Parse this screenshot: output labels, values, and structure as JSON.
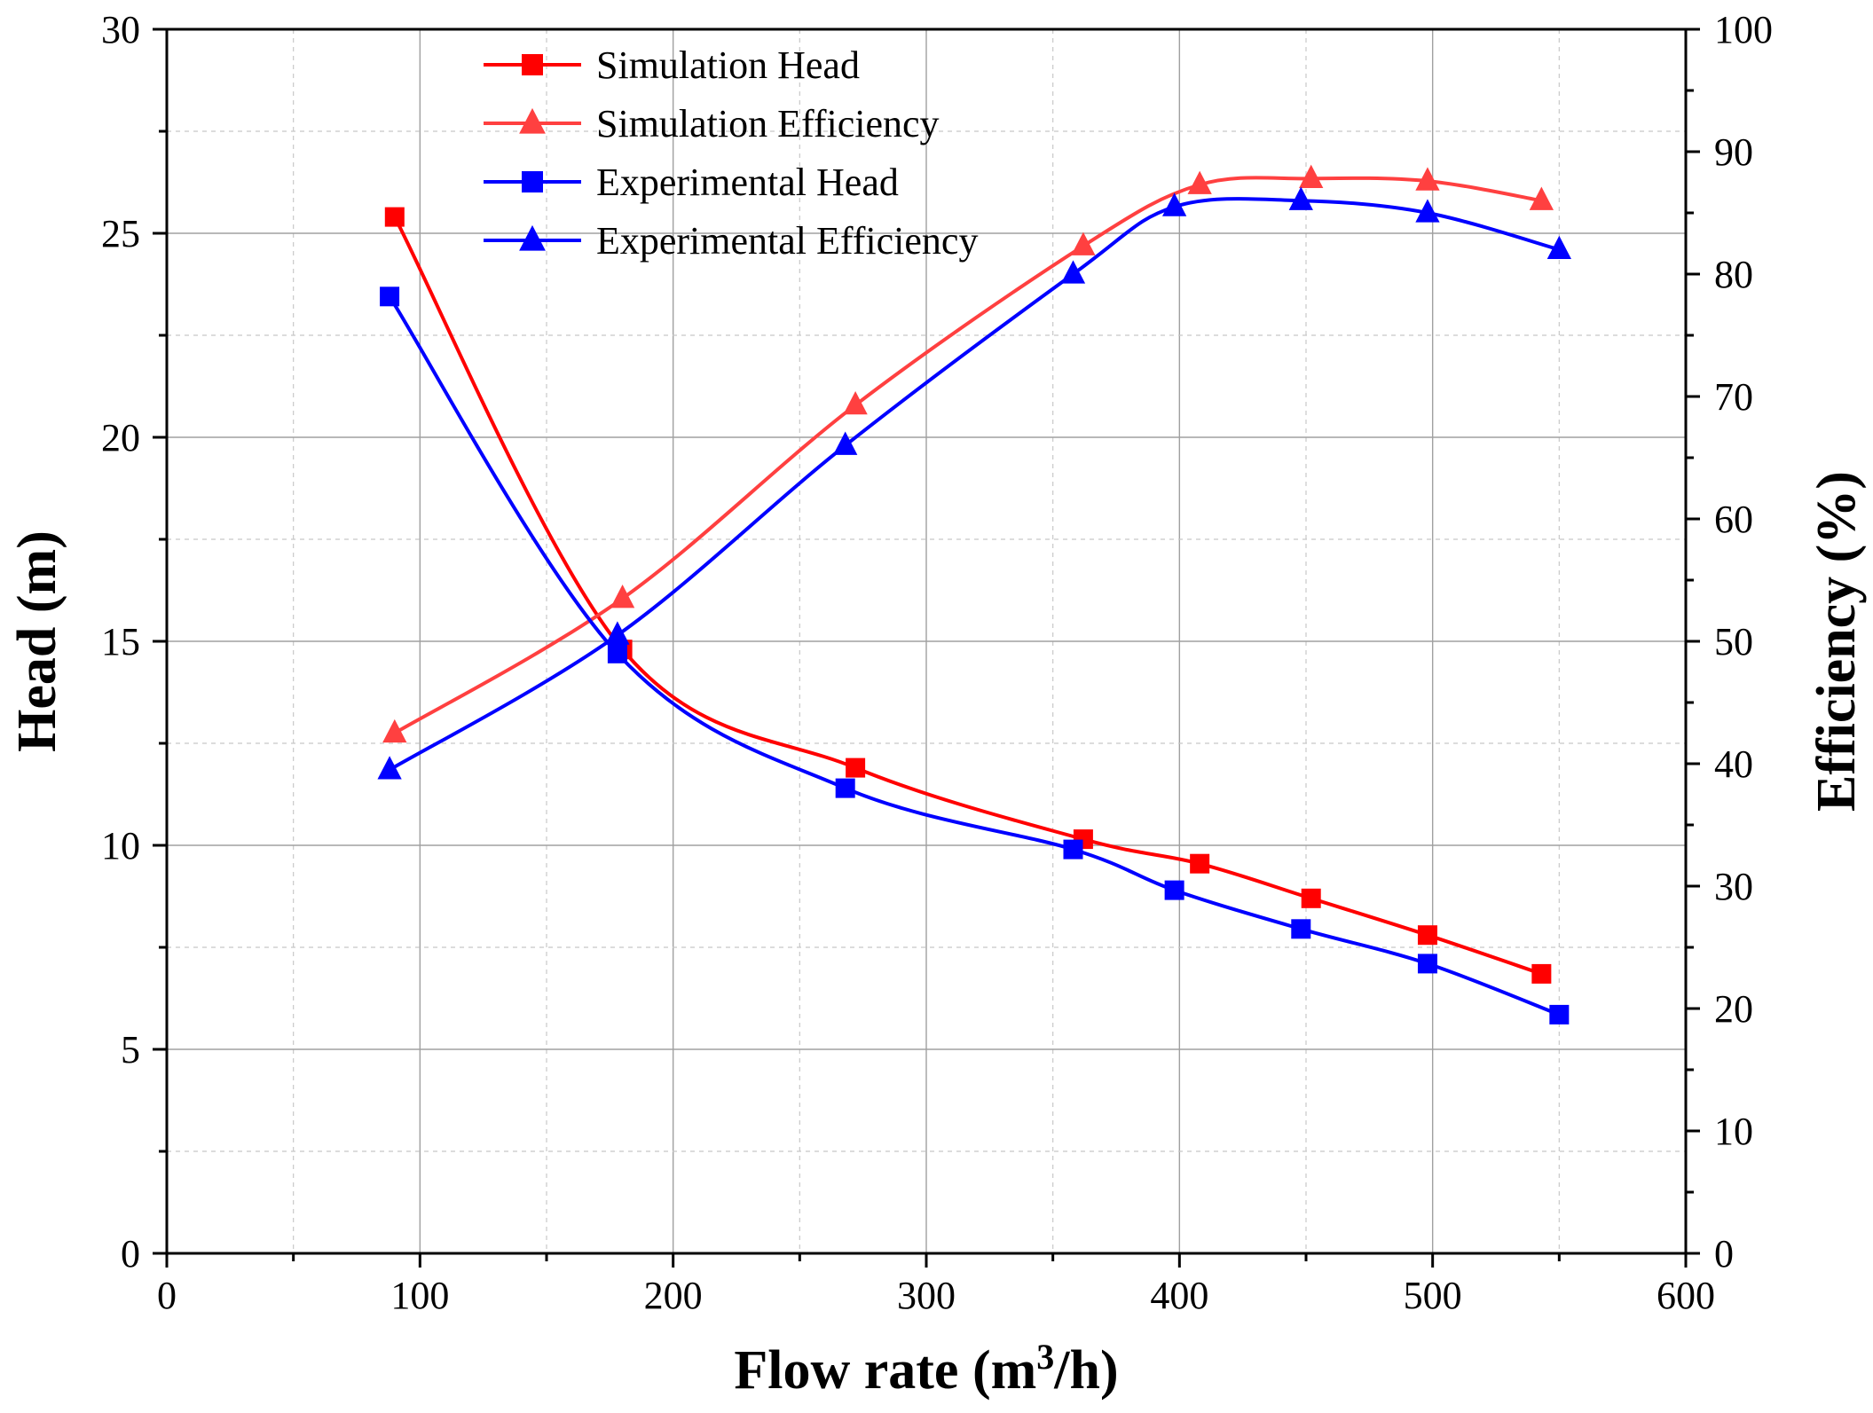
{
  "chart_data": {
    "type": "line",
    "title": "",
    "xlabel": "Flow rate (m",
    "xlabel_sup": "3",
    "xlabel_tail": "/h)",
    "ylabel": "Head (m)",
    "y2label": "Efficiency (%)",
    "xlim": [
      0,
      600
    ],
    "ylim": [
      0,
      30
    ],
    "y2lim": [
      0,
      100
    ],
    "x_ticks": [
      "0",
      "100",
      "200",
      "300",
      "400",
      "500",
      "600"
    ],
    "y_ticks": [
      "0",
      "5",
      "10",
      "15",
      "20",
      "25",
      "30"
    ],
    "y2_ticks": [
      "0",
      "10",
      "20",
      "30",
      "40",
      "50",
      "60",
      "70",
      "80",
      "90",
      "100"
    ],
    "grid": true,
    "legend_position": "top-center",
    "series": [
      {
        "name": "Simulation Head",
        "axis": "left",
        "marker": "square",
        "color": "#ff0000",
        "x": [
          90,
          180,
          272,
          362,
          408,
          452,
          498,
          543
        ],
        "y": [
          25.4,
          14.8,
          11.9,
          10.15,
          9.55,
          8.7,
          7.8,
          6.85
        ]
      },
      {
        "name": "Simulation Efficiency",
        "axis": "right",
        "marker": "triangle",
        "color": "#ff4040",
        "x": [
          90,
          180,
          272,
          362,
          408,
          452,
          498,
          543
        ],
        "y": [
          42.5,
          53.5,
          69.3,
          82.3,
          87.3,
          87.8,
          87.6,
          86.0
        ]
      },
      {
        "name": "Experimental Head",
        "axis": "left",
        "marker": "square",
        "color": "#0000ff",
        "x": [
          88,
          178,
          268,
          358,
          398,
          448,
          498,
          550
        ],
        "y": [
          23.45,
          14.7,
          11.4,
          9.9,
          8.9,
          7.95,
          7.1,
          5.85
        ]
      },
      {
        "name": "Experimental Efficiency",
        "axis": "right",
        "marker": "triangle",
        "color": "#0000ff",
        "x": [
          88,
          178,
          268,
          358,
          398,
          448,
          498,
          550
        ],
        "y": [
          39.5,
          50.5,
          66.0,
          80.0,
          85.5,
          86.0,
          85.0,
          82.0
        ]
      }
    ]
  }
}
